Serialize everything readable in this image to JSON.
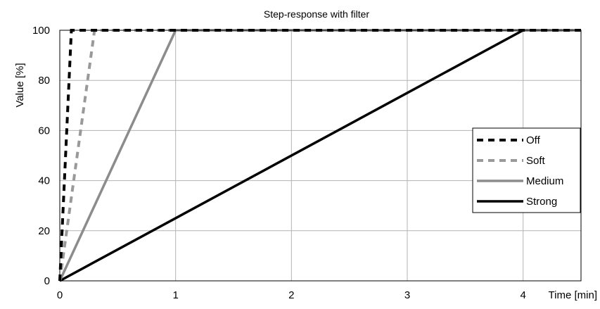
{
  "chart_data": {
    "type": "line",
    "title": "Step-response with filter",
    "xlabel": "Time [min]",
    "ylabel": "Value [%]",
    "xlim": [
      0,
      4.5
    ],
    "ylim": [
      0,
      100
    ],
    "xticks": [
      0,
      1,
      2,
      3,
      4
    ],
    "yticks": [
      0,
      20,
      40,
      60,
      80,
      100
    ],
    "grid": true,
    "legend_position": "right",
    "series": [
      {
        "name": "Off",
        "x": [
          0,
          0.1,
          4.5
        ],
        "y": [
          0,
          100,
          100
        ],
        "color": "#000000",
        "style": "dashed"
      },
      {
        "name": "Soft",
        "x": [
          0,
          0.3,
          4.5
        ],
        "y": [
          0,
          100,
          100
        ],
        "color": "#999999",
        "style": "dashed"
      },
      {
        "name": "Medium",
        "x": [
          0,
          1,
          4.5
        ],
        "y": [
          0,
          100,
          100
        ],
        "color": "#8c8c8c",
        "style": "solid"
      },
      {
        "name": "Strong",
        "x": [
          0,
          4,
          4.5
        ],
        "y": [
          0,
          100,
          100
        ],
        "color": "#000000",
        "style": "solid"
      }
    ]
  }
}
